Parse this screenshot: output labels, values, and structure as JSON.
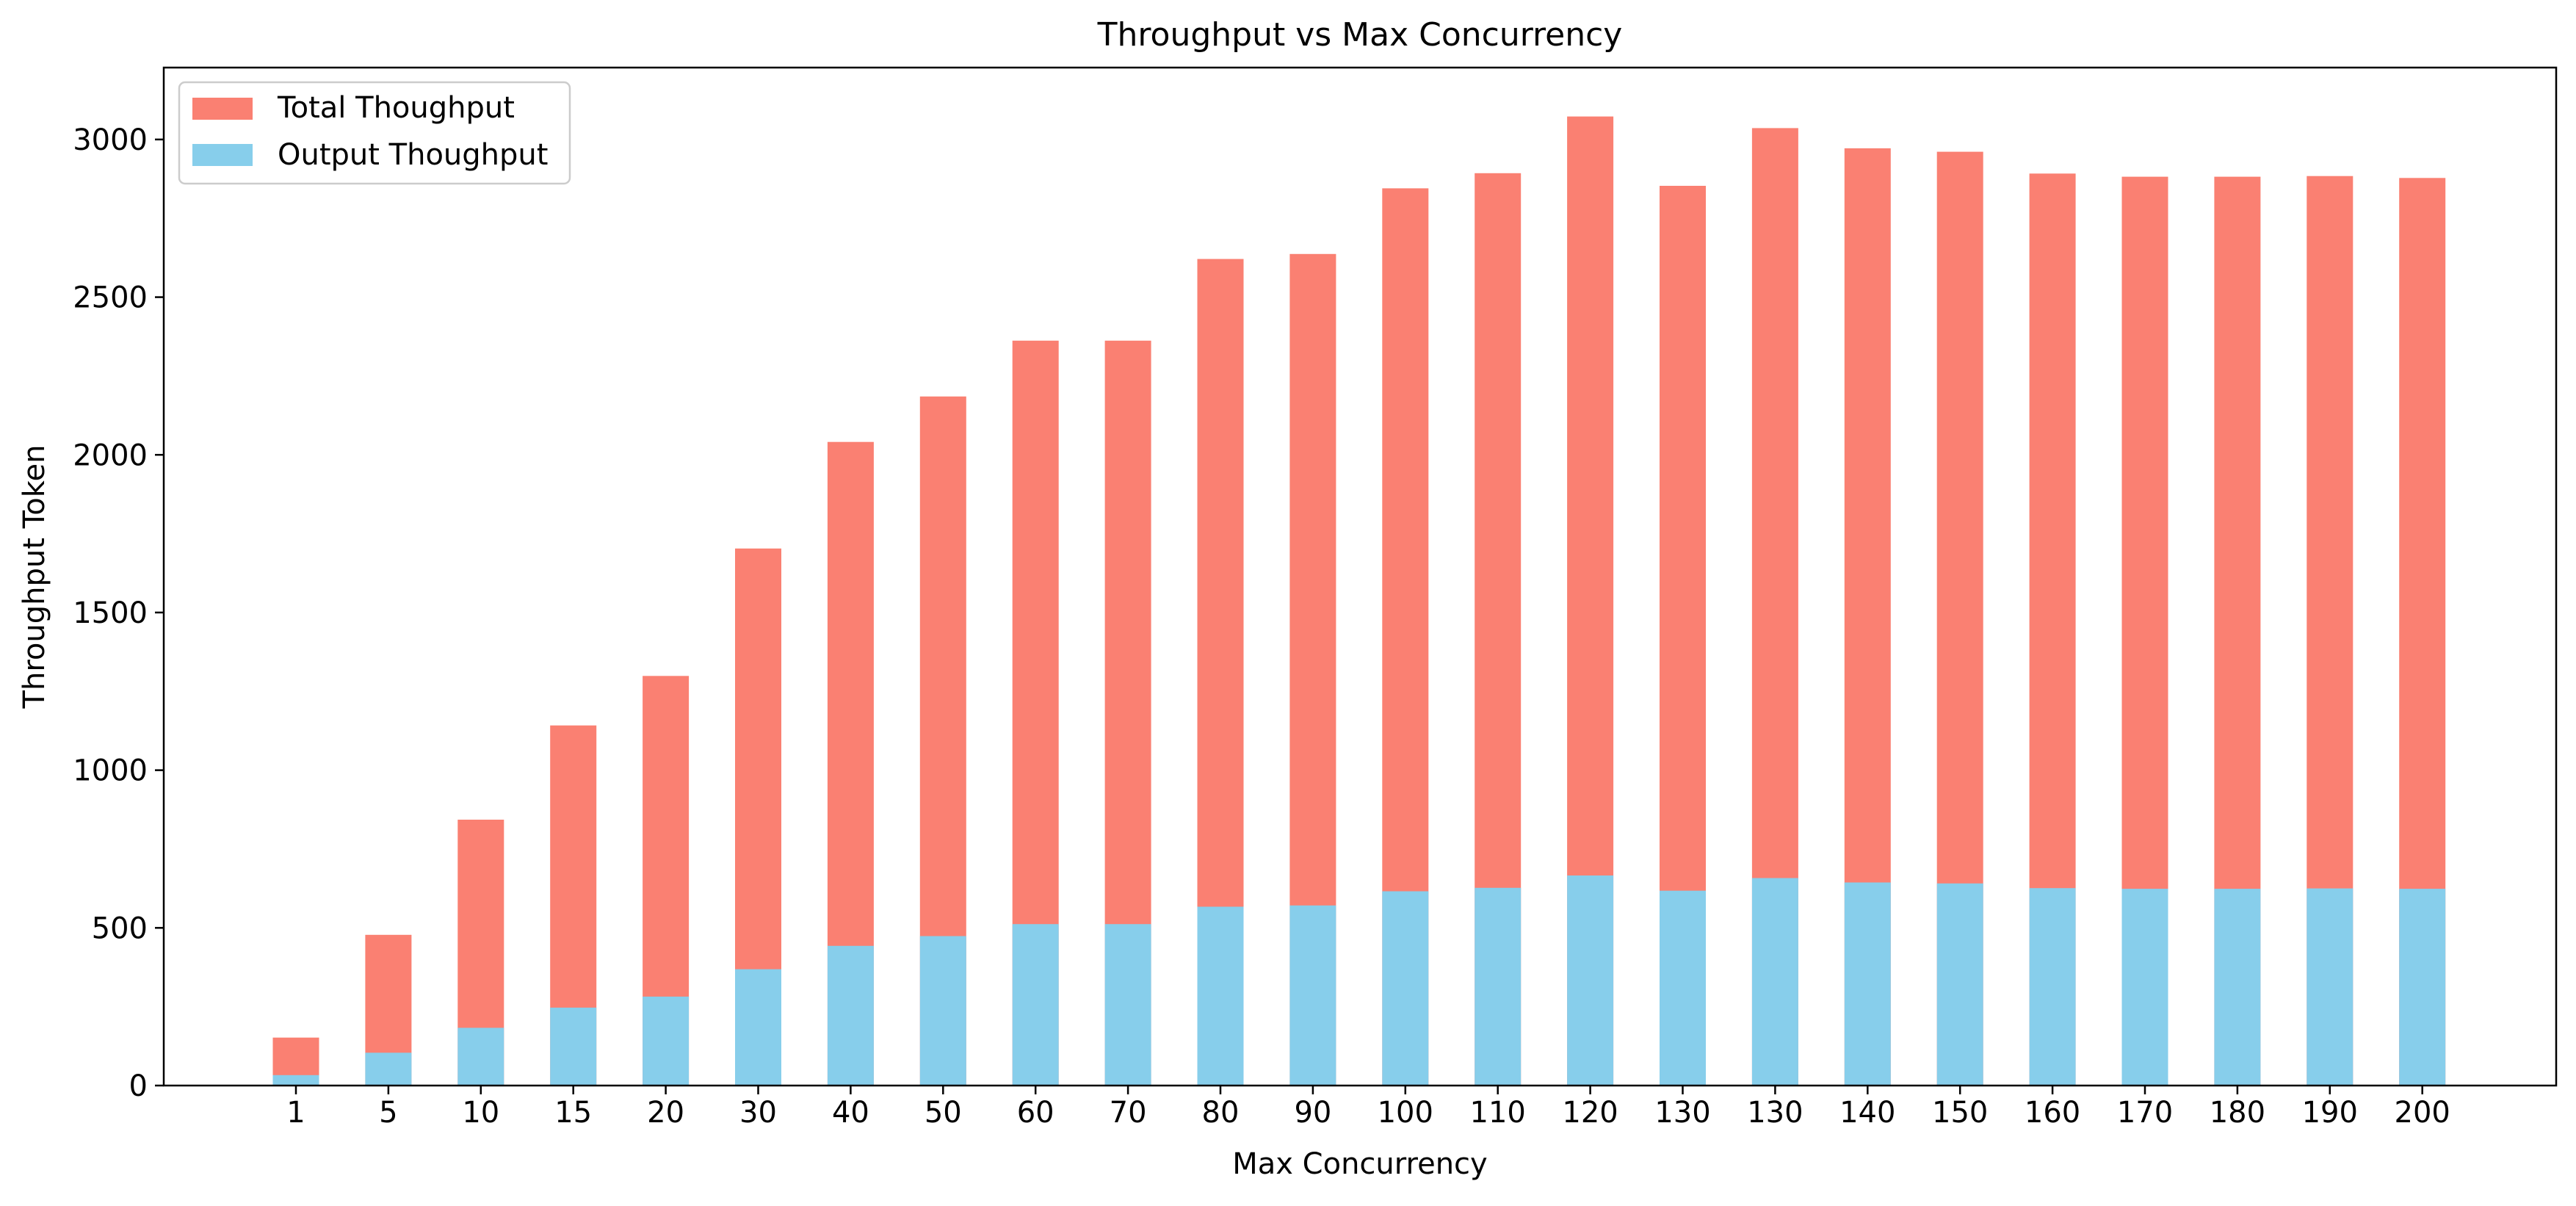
{
  "chart_data": {
    "type": "bar",
    "stacked": false,
    "title": "Throughput vs Max Concurrency",
    "xlabel": "Max Concurrency",
    "ylabel": "Throughput Token",
    "categories": [
      "1",
      "5",
      "10",
      "15",
      "20",
      "30",
      "40",
      "50",
      "60",
      "70",
      "80",
      "90",
      "100",
      "110",
      "120",
      "130",
      "130",
      "140",
      "150",
      "160",
      "170",
      "180",
      "190",
      "200"
    ],
    "series": [
      {
        "name": "Total Thoughput",
        "color": "#fa8072",
        "values": [
          152,
          478,
          843,
          1142,
          1299,
          1703,
          2041,
          2185,
          2362,
          2362,
          2621,
          2637,
          2845,
          2893,
          3073,
          2853,
          3036,
          2972,
          2961,
          2892,
          2882,
          2882,
          2884,
          2878
        ]
      },
      {
        "name": "Output Thoughput",
        "color": "#87ceeb",
        "values": [
          33,
          104,
          183,
          247,
          282,
          369,
          443,
          474,
          512,
          512,
          567,
          571,
          616,
          627,
          666,
          618,
          658,
          644,
          641,
          626,
          624,
          624,
          625,
          624
        ]
      }
    ],
    "ylim": [
      0,
      3228
    ],
    "yticks": [
      0,
      500,
      1000,
      1500,
      2000,
      2500,
      3000
    ],
    "grid": false,
    "legend_position": "top-left"
  }
}
